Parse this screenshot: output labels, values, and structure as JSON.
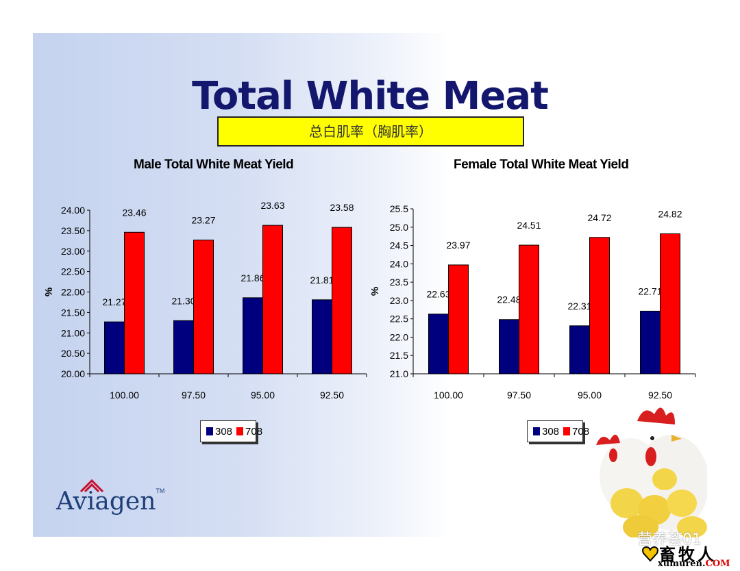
{
  "slide": {
    "title": "Total White Meat",
    "subtitle": "总白肌率（胸肌率）",
    "logo_text": "Aviagen",
    "logo_tm": "TM",
    "watermark_account": "营养荟01",
    "watermark_site": "畜牧人",
    "watermark_url_main": "xumuren.",
    "watermark_url_suffix": "COM"
  },
  "colors": {
    "series_308": "#00007f",
    "series_708": "#ff0000",
    "title": "#13186e",
    "subtitle_bg": "#ffff00"
  },
  "chart_data": [
    {
      "type": "bar",
      "title": "Male Total White Meat Yield",
      "ylabel": "%",
      "xlabel": "",
      "categories": [
        "100.00",
        "97.50",
        "95.00",
        "92.50"
      ],
      "ylim": [
        20.0,
        24.0
      ],
      "yticks": [
        "20.00",
        "20.50",
        "21.00",
        "21.50",
        "22.00",
        "22.50",
        "23.00",
        "23.50",
        "24.00"
      ],
      "series": [
        {
          "name": "308",
          "values": [
            21.27,
            21.3,
            21.86,
            21.81
          ],
          "labels": [
            "21.27",
            "21.30",
            "21.86",
            "21.81"
          ]
        },
        {
          "name": "708",
          "values": [
            23.46,
            23.27,
            23.63,
            23.58
          ],
          "labels": [
            "23.46",
            "23.27",
            "23.63",
            "23.58"
          ]
        }
      ],
      "legend": "bottom-center",
      "grid": false
    },
    {
      "type": "bar",
      "title": "Female Total White Meat Yield",
      "ylabel": "%",
      "xlabel": "",
      "categories": [
        "100.00",
        "97.50",
        "95.00",
        "92.50"
      ],
      "ylim": [
        21.0,
        25.5
      ],
      "yticks": [
        "21.0",
        "21.5",
        "22.0",
        "22.5",
        "23.0",
        "23.5",
        "24.0",
        "24.5",
        "25.0",
        "25.5"
      ],
      "series": [
        {
          "name": "308",
          "values": [
            22.63,
            22.48,
            22.31,
            22.71
          ],
          "labels": [
            "22.63",
            "22.48",
            "22.31",
            "22.71"
          ]
        },
        {
          "name": "708",
          "values": [
            23.97,
            24.51,
            24.72,
            24.82
          ],
          "labels": [
            "23.97",
            "24.51",
            "24.72",
            "24.82"
          ]
        }
      ],
      "legend": "bottom-center",
      "grid": false
    }
  ]
}
